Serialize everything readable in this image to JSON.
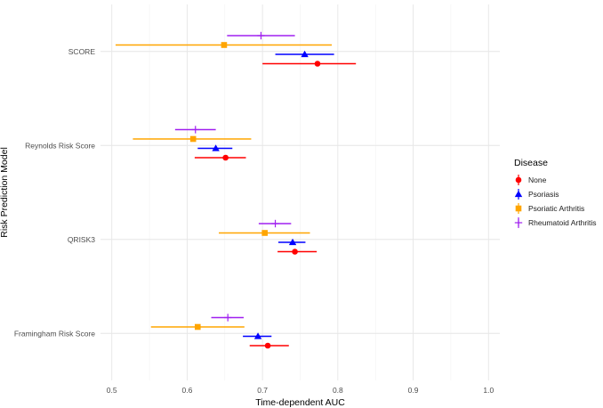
{
  "chart_data": {
    "type": "forest",
    "xlabel": "Time-dependent AUC",
    "ylabel": "Risk Prediction Model",
    "xlim": [
      0.485,
      1.015
    ],
    "x_ticks": [
      0.5,
      0.6,
      0.7,
      0.8,
      0.9,
      1.0
    ],
    "x_tick_labels": [
      "0.5",
      "0.6",
      "0.7",
      "0.8",
      "0.9",
      "1.0"
    ],
    "categories": [
      "SCORE",
      "Reynolds Risk Score",
      "QRISK3",
      "Framingham Risk Score"
    ],
    "grid": true,
    "legend": {
      "title": "Disease",
      "position": "right"
    },
    "series": [
      {
        "name": "None",
        "color": "#ff0000",
        "shape": "circle",
        "points": [
          {
            "category": "SCORE",
            "est": 0.773,
            "lo": 0.7,
            "hi": 0.824
          },
          {
            "category": "Reynolds Risk Score",
            "est": 0.651,
            "lo": 0.61,
            "hi": 0.678
          },
          {
            "category": "QRISK3",
            "est": 0.743,
            "lo": 0.72,
            "hi": 0.772
          },
          {
            "category": "Framingham Risk Score",
            "est": 0.707,
            "lo": 0.683,
            "hi": 0.735
          }
        ]
      },
      {
        "name": "Psoriasis",
        "color": "#0000ff",
        "shape": "triangle",
        "points": [
          {
            "category": "SCORE",
            "est": 0.756,
            "lo": 0.717,
            "hi": 0.795
          },
          {
            "category": "Reynolds Risk Score",
            "est": 0.638,
            "lo": 0.614,
            "hi": 0.66
          },
          {
            "category": "QRISK3",
            "est": 0.74,
            "lo": 0.721,
            "hi": 0.757
          },
          {
            "category": "Framingham Risk Score",
            "est": 0.694,
            "lo": 0.674,
            "hi": 0.712
          }
        ]
      },
      {
        "name": "Psoriatic Arthritis",
        "color": "#ffa500",
        "shape": "square",
        "points": [
          {
            "category": "SCORE",
            "est": 0.649,
            "lo": 0.505,
            "hi": 0.792
          },
          {
            "category": "Reynolds Risk Score",
            "est": 0.608,
            "lo": 0.528,
            "hi": 0.685
          },
          {
            "category": "QRISK3",
            "est": 0.703,
            "lo": 0.642,
            "hi": 0.763
          },
          {
            "category": "Framingham Risk Score",
            "est": 0.614,
            "lo": 0.552,
            "hi": 0.676
          }
        ]
      },
      {
        "name": "Rheumatoid Arthritis",
        "color": "#a020f0",
        "shape": "cross",
        "points": [
          {
            "category": "SCORE",
            "est": 0.698,
            "lo": 0.653,
            "hi": 0.743
          },
          {
            "category": "Reynolds Risk Score",
            "est": 0.611,
            "lo": 0.584,
            "hi": 0.638
          },
          {
            "category": "QRISK3",
            "est": 0.717,
            "lo": 0.695,
            "hi": 0.738
          },
          {
            "category": "Framingham Risk Score",
            "est": 0.654,
            "lo": 0.632,
            "hi": 0.675
          }
        ]
      }
    ]
  }
}
